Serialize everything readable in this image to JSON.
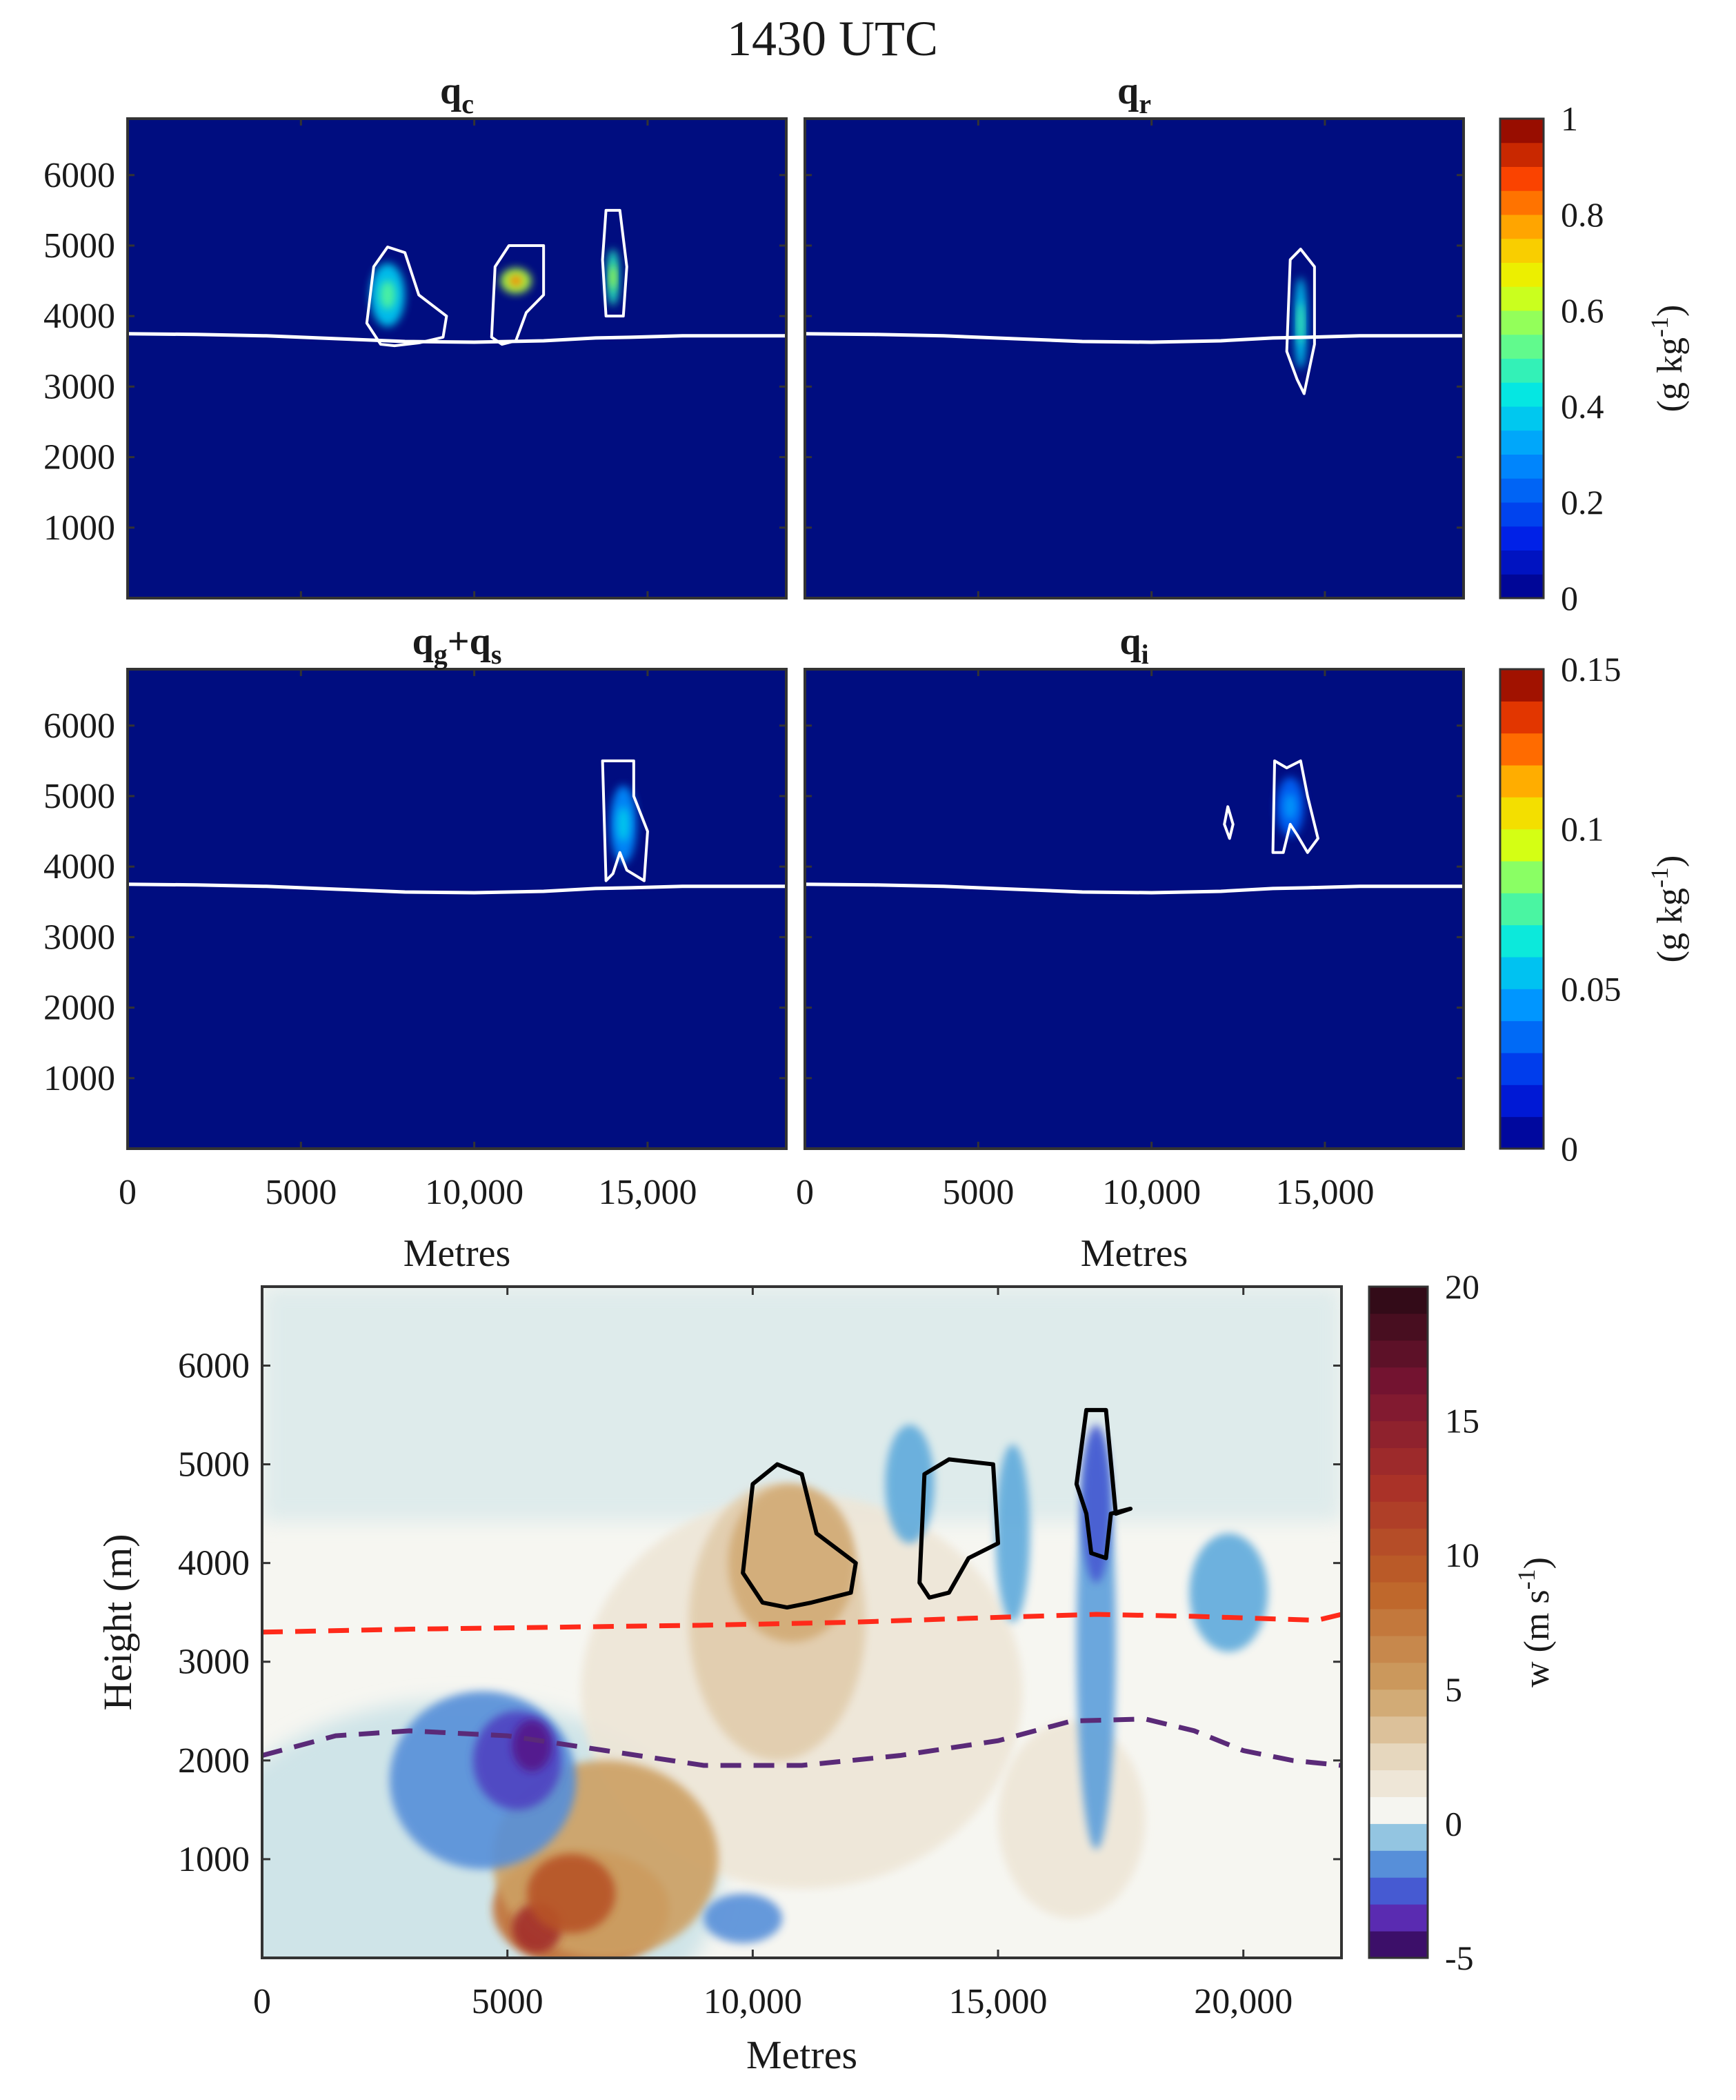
{
  "figure": {
    "title": "1430 UTC"
  },
  "colors": {
    "background_field": "#000d80",
    "field_blue": "#1e3cc8",
    "contour_white": "#ffffff",
    "contour_black": "#000000",
    "dashed_red": "#ff2a1a",
    "dashed_purple": "#5a2a78"
  },
  "chart_data": [
    {
      "id": "qc",
      "type": "heatmap",
      "title": "q",
      "title_sub": "c",
      "x_ticks": [
        0,
        5000,
        10000,
        15000
      ],
      "y_ticks": [
        1000,
        2000,
        3000,
        4000,
        5000,
        6000
      ],
      "y_tick_labels": [
        "1000",
        "2000",
        "3000",
        "4000",
        "5000",
        "6000"
      ],
      "xlim": [
        0,
        19000
      ],
      "ylim": [
        0,
        6800
      ],
      "freezing_level": [
        [
          0,
          3750
        ],
        [
          2000,
          3740
        ],
        [
          4000,
          3720
        ],
        [
          6000,
          3680
        ],
        [
          8000,
          3640
        ],
        [
          10000,
          3630
        ],
        [
          12000,
          3650
        ],
        [
          13500,
          3690
        ],
        [
          14500,
          3700
        ],
        [
          16000,
          3720
        ],
        [
          19000,
          3720
        ]
      ],
      "contours": [
        [
          [
            7300,
            3600
          ],
          [
            6900,
            3900
          ],
          [
            7100,
            4700
          ],
          [
            7500,
            4980
          ],
          [
            8000,
            4900
          ],
          [
            8400,
            4300
          ],
          [
            9200,
            4000
          ],
          [
            9100,
            3700
          ],
          [
            8400,
            3620
          ],
          [
            7700,
            3580
          ]
        ],
        [
          [
            10500,
            3700
          ],
          [
            10600,
            4700
          ],
          [
            11000,
            5000
          ],
          [
            12000,
            5000
          ],
          [
            12000,
            4300
          ],
          [
            11500,
            4050
          ],
          [
            11200,
            3650
          ],
          [
            10800,
            3600
          ]
        ],
        [
          [
            13800,
            4000
          ],
          [
            13700,
            4800
          ],
          [
            13800,
            5500
          ],
          [
            14200,
            5500
          ],
          [
            14400,
            4700
          ],
          [
            14300,
            4000
          ]
        ]
      ],
      "blobs": [
        {
          "x": 7500,
          "y": 4300,
          "rx": 500,
          "ry": 450,
          "v": 0.3
        },
        {
          "x": 11200,
          "y": 4500,
          "rx": 450,
          "ry": 180,
          "v": 0.55
        },
        {
          "x": 14000,
          "y": 4550,
          "rx": 180,
          "ry": 400,
          "v": 0.4
        }
      ]
    },
    {
      "id": "qr",
      "type": "heatmap",
      "title": "q",
      "title_sub": "r",
      "x_ticks": [
        0,
        5000,
        10000,
        15000
      ],
      "xlim": [
        0,
        19000
      ],
      "ylim": [
        0,
        6800
      ],
      "freezing_level": [
        [
          0,
          3750
        ],
        [
          2000,
          3740
        ],
        [
          4000,
          3720
        ],
        [
          6000,
          3680
        ],
        [
          8000,
          3640
        ],
        [
          10000,
          3630
        ],
        [
          12000,
          3650
        ],
        [
          13500,
          3690
        ],
        [
          14500,
          3700
        ],
        [
          16000,
          3720
        ],
        [
          19000,
          3720
        ]
      ],
      "contours": [
        [
          [
            14200,
            3100
          ],
          [
            13900,
            3500
          ],
          [
            14000,
            4800
          ],
          [
            14300,
            4950
          ],
          [
            14700,
            4700
          ],
          [
            14700,
            3600
          ],
          [
            14400,
            2900
          ]
        ]
      ],
      "blobs": [
        {
          "x": 14300,
          "y": 3900,
          "rx": 180,
          "ry": 650,
          "v": 0.3
        }
      ]
    },
    {
      "id": "qgqs",
      "type": "heatmap",
      "title": "q",
      "title_sub": "g",
      "title_plus": "+q",
      "title_sub2": "s",
      "x_ticks": [
        0,
        5000,
        10000,
        15000
      ],
      "y_ticks": [
        1000,
        2000,
        3000,
        4000,
        5000,
        6000
      ],
      "y_tick_labels": [
        "1000",
        "2000",
        "3000",
        "4000",
        "5000",
        "6000"
      ],
      "xlim": [
        0,
        19000
      ],
      "ylim": [
        0,
        6800
      ],
      "freezing_level": [
        [
          0,
          3750
        ],
        [
          2000,
          3740
        ],
        [
          4000,
          3720
        ],
        [
          6000,
          3680
        ],
        [
          8000,
          3640
        ],
        [
          10000,
          3630
        ],
        [
          12000,
          3650
        ],
        [
          13500,
          3690
        ],
        [
          14500,
          3700
        ],
        [
          16000,
          3720
        ],
        [
          19000,
          3720
        ]
      ],
      "contours": [
        [
          [
            13800,
            3800
          ],
          [
            13700,
            5500
          ],
          [
            14600,
            5500
          ],
          [
            14600,
            5000
          ],
          [
            15000,
            4500
          ],
          [
            14900,
            3800
          ],
          [
            14400,
            3950
          ],
          [
            14200,
            4200
          ],
          [
            14000,
            3900
          ]
        ]
      ],
      "blobs": [
        {
          "x": 14300,
          "y": 4600,
          "rx": 380,
          "ry": 550,
          "v": 0.03
        }
      ]
    },
    {
      "id": "qi",
      "type": "heatmap",
      "title": "q",
      "title_sub": "i",
      "x_ticks": [
        0,
        5000,
        10000,
        15000
      ],
      "xlim": [
        0,
        19000
      ],
      "ylim": [
        0,
        6800
      ],
      "freezing_level": [
        [
          0,
          3750
        ],
        [
          2000,
          3740
        ],
        [
          4000,
          3720
        ],
        [
          6000,
          3680
        ],
        [
          8000,
          3640
        ],
        [
          10000,
          3630
        ],
        [
          12000,
          3650
        ],
        [
          13500,
          3690
        ],
        [
          14500,
          3700
        ],
        [
          16000,
          3720
        ],
        [
          19000,
          3720
        ]
      ],
      "contours": [
        [
          [
            12100,
            4600
          ],
          [
            12200,
            4850
          ],
          [
            12350,
            4600
          ],
          [
            12250,
            4400
          ]
        ],
        [
          [
            13500,
            4200
          ],
          [
            13550,
            5500
          ],
          [
            13900,
            5400
          ],
          [
            14300,
            5500
          ],
          [
            14500,
            5000
          ],
          [
            14800,
            4400
          ],
          [
            14500,
            4200
          ],
          [
            14200,
            4450
          ],
          [
            14000,
            4600
          ],
          [
            13800,
            4200
          ]
        ]
      ],
      "blobs": [
        {
          "x": 14000,
          "y": 4850,
          "rx": 400,
          "ry": 420,
          "v": 0.02
        }
      ]
    }
  ],
  "colorbars": [
    {
      "id": "cb1",
      "min": 0,
      "max": 1,
      "ticks": [
        0,
        0.2,
        0.4,
        0.6,
        0.8,
        1
      ],
      "tick_labels": [
        "0",
        "0.2",
        "0.4",
        "0.6",
        "0.8",
        "1"
      ],
      "levels": 20
    },
    {
      "id": "cb2",
      "min": 0,
      "max": 0.15,
      "ticks": [
        0,
        0.05,
        0.1,
        0.15
      ],
      "tick_labels": [
        "0",
        "0.05",
        "0.1",
        "0.15"
      ],
      "levels": 15
    }
  ],
  "panel_labels": {
    "x_tick_labels": [
      "0",
      "5000",
      "10,000",
      "15,000"
    ],
    "xlabel": "Metres",
    "cb_label_main": "(g kg",
    "cb_label_sup": "-1",
    "cb_label_end": ")"
  },
  "w_chart": {
    "type": "heatmap",
    "xlabel": "Metres",
    "ylabel": "Height (m)",
    "xlim": [
      0,
      22000
    ],
    "ylim": [
      0,
      6800
    ],
    "x_ticks": [
      0,
      5000,
      10000,
      15000,
      20000
    ],
    "x_tick_labels": [
      "0",
      "5000",
      "10,000",
      "15,000",
      "20,000"
    ],
    "y_ticks": [
      1000,
      2000,
      3000,
      4000,
      5000,
      6000
    ],
    "y_tick_labels": [
      "1000",
      "2000",
      "3000",
      "4000",
      "5000",
      "6000"
    ],
    "colorbar": {
      "min": -5,
      "max": 20,
      "ticks": [
        -5,
        0,
        5,
        10,
        15,
        20
      ],
      "tick_labels": [
        "-5",
        "0",
        "5",
        "10",
        "15",
        "20"
      ],
      "label_main": "w (m s",
      "label_sup": "-1",
      "label_end": ")"
    },
    "red_dashed": [
      [
        0,
        3300
      ],
      [
        3000,
        3330
      ],
      [
        6000,
        3350
      ],
      [
        9000,
        3370
      ],
      [
        12000,
        3400
      ],
      [
        15000,
        3450
      ],
      [
        17000,
        3480
      ],
      [
        19000,
        3460
      ],
      [
        21500,
        3420
      ],
      [
        22000,
        3480
      ]
    ],
    "purple_dashed": [
      [
        0,
        2050
      ],
      [
        1500,
        2250
      ],
      [
        3000,
        2300
      ],
      [
        5000,
        2250
      ],
      [
        7000,
        2100
      ],
      [
        9000,
        1950
      ],
      [
        11000,
        1950
      ],
      [
        13000,
        2050
      ],
      [
        15000,
        2200
      ],
      [
        16500,
        2400
      ],
      [
        18000,
        2420
      ],
      [
        19000,
        2300
      ],
      [
        20000,
        2100
      ],
      [
        21000,
        2000
      ],
      [
        22000,
        1950
      ]
    ],
    "black_contours": [
      [
        [
          10200,
          3600
        ],
        [
          9800,
          3900
        ],
        [
          10000,
          4800
        ],
        [
          10500,
          5000
        ],
        [
          11000,
          4900
        ],
        [
          11300,
          4300
        ],
        [
          12100,
          4000
        ],
        [
          12000,
          3700
        ],
        [
          11200,
          3600
        ],
        [
          10700,
          3550
        ]
      ],
      [
        [
          13400,
          3800
        ],
        [
          13500,
          4900
        ],
        [
          14000,
          5050
        ],
        [
          14900,
          5000
        ],
        [
          15000,
          4200
        ],
        [
          14400,
          4050
        ],
        [
          14000,
          3700
        ],
        [
          13600,
          3650
        ]
      ],
      [
        [
          16800,
          4500
        ],
        [
          16600,
          4800
        ],
        [
          16800,
          5550
        ],
        [
          17200,
          5550
        ],
        [
          17400,
          4500
        ],
        [
          17700,
          4550
        ],
        [
          17300,
          4500
        ],
        [
          17200,
          4050
        ],
        [
          16900,
          4100
        ]
      ]
    ],
    "blobs": [
      {
        "x": 11000,
        "y": 2700,
        "rx": 4500,
        "ry": 2000,
        "v": 1.5
      },
      {
        "x": 10500,
        "y": 3400,
        "rx": 1800,
        "ry": 1400,
        "v": 3
      },
      {
        "x": 10800,
        "y": 4000,
        "rx": 1300,
        "ry": 800,
        "v": 4.5
      },
      {
        "x": 16500,
        "y": 1400,
        "rx": 1500,
        "ry": 1000,
        "v": 1.5
      },
      {
        "x": 6500,
        "y": 500,
        "rx": 1800,
        "ry": 600,
        "v": 8
      },
      {
        "x": 7000,
        "y": 1000,
        "rx": 2300,
        "ry": 1000,
        "v": 5
      },
      {
        "x": 5600,
        "y": 300,
        "rx": 500,
        "ry": 250,
        "v": 13
      },
      {
        "x": 6300,
        "y": 650,
        "rx": 900,
        "ry": 400,
        "v": 10
      },
      {
        "x": 4500,
        "y": 1800,
        "rx": 1900,
        "ry": 900,
        "v": -1.5
      },
      {
        "x": 5200,
        "y": 2000,
        "rx": 900,
        "ry": 500,
        "v": -3
      },
      {
        "x": 5500,
        "y": 2150,
        "rx": 400,
        "ry": 260,
        "v": -4.2
      },
      {
        "x": 17000,
        "y": 3200,
        "rx": 400,
        "ry": 2100,
        "v": -1.2
      },
      {
        "x": 17000,
        "y": 4600,
        "rx": 300,
        "ry": 800,
        "v": -2.5
      },
      {
        "x": 13200,
        "y": 4800,
        "rx": 500,
        "ry": 600,
        "v": -1
      },
      {
        "x": 15300,
        "y": 4300,
        "rx": 350,
        "ry": 900,
        "v": -1
      },
      {
        "x": 19700,
        "y": 3700,
        "rx": 800,
        "ry": 600,
        "v": -1
      },
      {
        "x": 9800,
        "y": 400,
        "rx": 800,
        "ry": 250,
        "v": -1.5
      }
    ]
  }
}
